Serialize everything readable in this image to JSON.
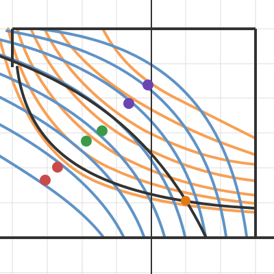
{
  "app": {
    "kind": "graphing-calculator"
  },
  "graph": {
    "grid": true,
    "axes_visible": true,
    "tick_labels_visible": false,
    "colors": {
      "grid": "#dcdcdc",
      "axis": "#222222",
      "orange_curves": "#f7a055",
      "blue_curves": "#5f93c6",
      "dark_curves": "#333333",
      "box": "#333333",
      "point_purple": "#6a45b1",
      "point_green": "#3a9a4a",
      "point_red": "#c94a4a",
      "point_orange": "#e07a12"
    },
    "curve_families": [
      {
        "name": "orange",
        "count": 7
      },
      {
        "name": "blue",
        "count": 8
      },
      {
        "name": "dark",
        "count": 2
      }
    ],
    "highlight_points": [
      {
        "color": "purple",
        "count": 2
      },
      {
        "color": "green",
        "count": 2
      },
      {
        "color": "red",
        "count": 2
      },
      {
        "color": "orange",
        "count": 1
      }
    ]
  }
}
